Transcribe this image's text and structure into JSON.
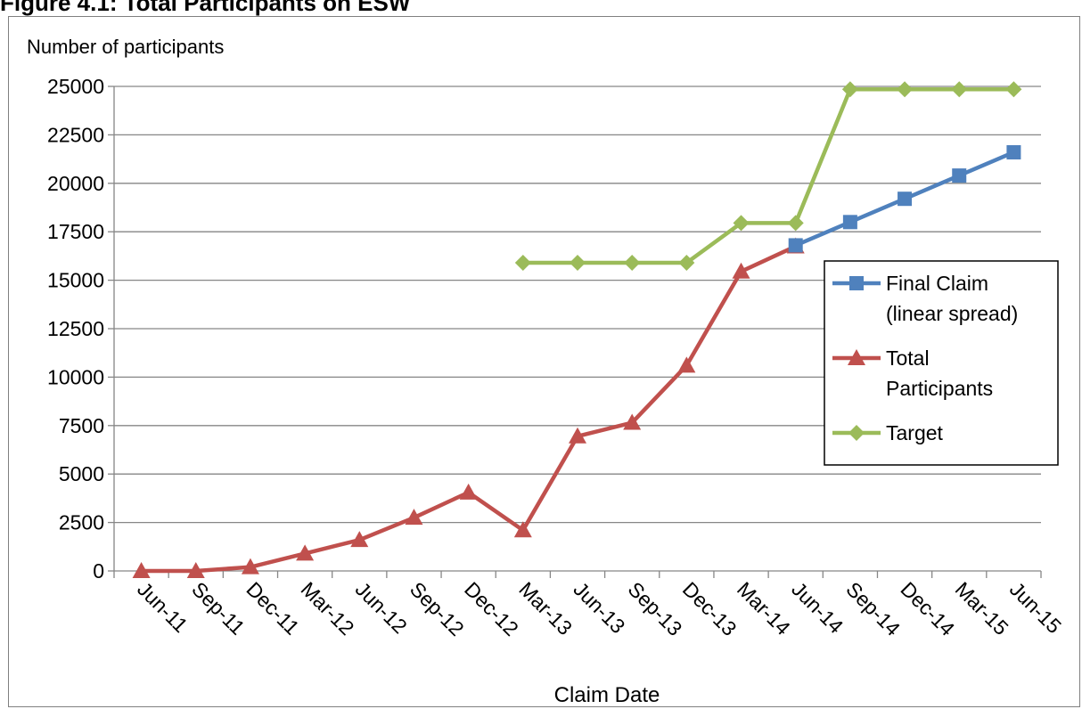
{
  "figure_title": "Figure 4.1: Total Participants on ESW",
  "chart_data": {
    "type": "line",
    "title": "",
    "ylabel": "Number of participants",
    "xlabel": "Claim Date",
    "ylim": [
      0,
      25000
    ],
    "yticks": [
      0,
      2500,
      5000,
      7500,
      10000,
      12500,
      15000,
      17500,
      20000,
      22500,
      25000
    ],
    "grid": true,
    "legend_position": "right",
    "categories": [
      "Jun-11",
      "Sep-11",
      "Dec-11",
      "Mar-12",
      "Jun-12",
      "Sep-12",
      "Dec-12",
      "Mar-13",
      "Jun-13",
      "Sep-13",
      "Dec-13",
      "Mar-14",
      "Jun-14",
      "Sep-14",
      "Dec-14",
      "Mar-15",
      "Jun-15"
    ],
    "series": [
      {
        "name": "Final Claim (linear spread)",
        "legend_lines": [
          "Final Claim",
          "(linear spread)"
        ],
        "color": "#4F81BD",
        "marker": "square",
        "values": [
          null,
          null,
          null,
          null,
          null,
          null,
          null,
          null,
          null,
          null,
          null,
          null,
          16800,
          18000,
          19200,
          20400,
          21600
        ]
      },
      {
        "name": "Total Participants",
        "legend_lines": [
          "Total",
          "Participants"
        ],
        "color": "#C0504D",
        "marker": "triangle",
        "values": [
          0,
          0,
          200,
          900,
          1600,
          2750,
          4050,
          2100,
          6950,
          7650,
          10600,
          15450,
          16750,
          null,
          null,
          null,
          null
        ]
      },
      {
        "name": "Target",
        "legend_lines": [
          "Target"
        ],
        "color": "#9BBB59",
        "marker": "diamond",
        "values": [
          null,
          null,
          null,
          null,
          null,
          null,
          null,
          15900,
          15900,
          15900,
          15900,
          17950,
          17950,
          24850,
          24850,
          24850,
          24850
        ]
      }
    ]
  }
}
